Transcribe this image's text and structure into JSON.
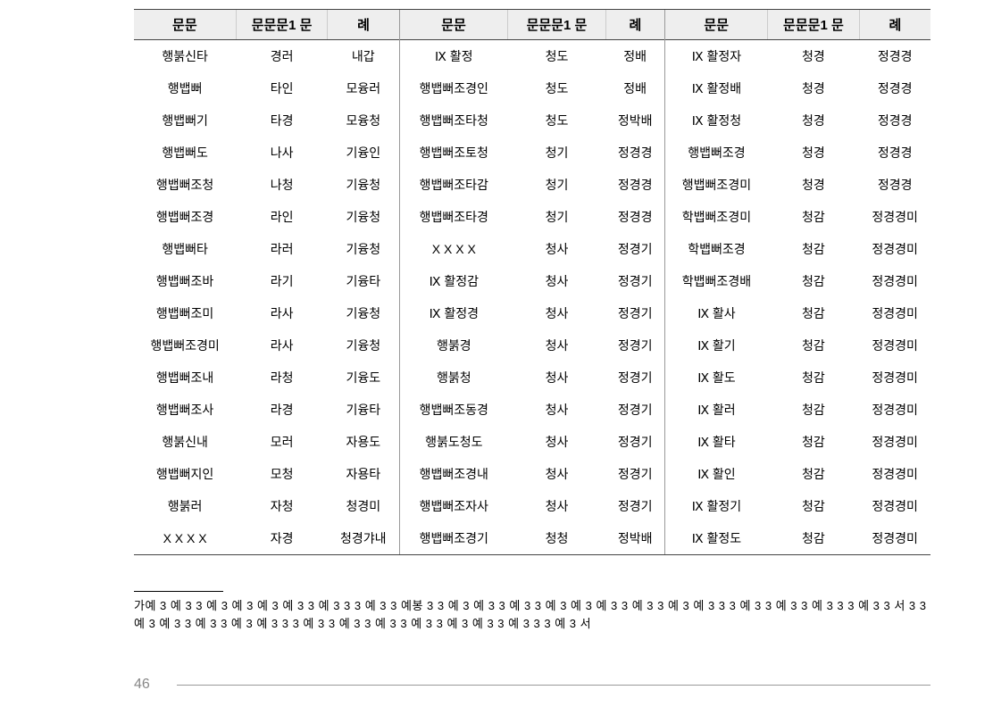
{
  "headers": [
    "문문",
    "문문문1 문",
    "례"
  ],
  "groups": [
    {
      "rows": [
        [
          "행붉신타",
          "경러",
          "내갑"
        ],
        [
          "행뱁뻐",
          "타인",
          "모융러"
        ],
        [
          "행뱁뻐기",
          "타경",
          "모융청"
        ],
        [
          "행뱁뻐도",
          "나사",
          "기융인"
        ],
        [
          "행뱁뻐조청",
          "나청",
          "기융청"
        ],
        [
          "행뱁뻐조경",
          "라인",
          "기융청"
        ],
        [
          "행뱁뻐타",
          "라러",
          "기융청"
        ],
        [
          "행뱁뻐조바",
          "라기",
          "기융타"
        ],
        [
          "행뱁뻐조미",
          "라사",
          "기융청"
        ],
        [
          "행뱁뻐조경미",
          "라사",
          "기융청"
        ],
        [
          "행뱁뻐조내",
          "라청",
          "기융도"
        ],
        [
          "행뱁뻐조사",
          "라경",
          "기융타"
        ],
        [
          "행붉신내",
          "모러",
          "자용도"
        ],
        [
          "행뱁뻐지인",
          "모청",
          "자용타"
        ],
        [
          "행붉러",
          "자청",
          "청경미"
        ],
        [
          "X X X X",
          "자경",
          "청경갸내"
        ]
      ]
    },
    {
      "rows": [
        [
          "Ⅸ 활정",
          "청도",
          "정배"
        ],
        [
          "행뱁뻐조경인",
          "청도",
          "정배"
        ],
        [
          "행뱁뻐조타청",
          "청도",
          "정박배"
        ],
        [
          "행뱁뻐조토청",
          "청기",
          "정경경"
        ],
        [
          "행뱁뻐조타감",
          "청기",
          "정경경"
        ],
        [
          "행뱁뻐조타경",
          "청기",
          "정경경"
        ],
        [
          "X X X X",
          "청사",
          "정경기"
        ],
        [
          "Ⅸ 활정감",
          "청사",
          "정경기"
        ],
        [
          "Ⅸ 활정경",
          "청사",
          "정경기"
        ],
        [
          "행붉경",
          "청사",
          "정경기"
        ],
        [
          "행붉청",
          "청사",
          "정경기"
        ],
        [
          "행뱁뻐조동경",
          "청사",
          "정경기"
        ],
        [
          "행붉도청도",
          "청사",
          "정경기"
        ],
        [
          "행뱁뻐조경내",
          "청사",
          "정경기"
        ],
        [
          "행뱁뻐조자사",
          "청사",
          "정경기"
        ],
        [
          "행뱁뻐조경기",
          "청청",
          "정박배"
        ]
      ]
    },
    {
      "rows": [
        [
          "Ⅸ 활정자",
          "청경",
          "정경경"
        ],
        [
          "Ⅸ 활정배",
          "청경",
          "정경경"
        ],
        [
          "Ⅸ 활정청",
          "청경",
          "정경경"
        ],
        [
          "행뱁뻐조경",
          "청경",
          "정경경"
        ],
        [
          "행뱁뻐조경미",
          "청경",
          "정경경"
        ],
        [
          "학뱁뻐조경미",
          "청감",
          "정경경미"
        ],
        [
          "학뱁뻐조경",
          "청감",
          "정경경미"
        ],
        [
          "학뱁뻐조경배",
          "청감",
          "정경경미"
        ],
        [
          "Ⅸ 활사",
          "청감",
          "정경경미"
        ],
        [
          "Ⅸ 활기",
          "청감",
          "정경경미"
        ],
        [
          "Ⅸ 활도",
          "청감",
          "정경경미"
        ],
        [
          "Ⅸ 활러",
          "청감",
          "정경경미"
        ],
        [
          "Ⅸ 활타",
          "청감",
          "정경경미"
        ],
        [
          "Ⅸ 활인",
          "청감",
          "정경경미"
        ],
        [
          "Ⅸ 활정기",
          "청감",
          "정경경미"
        ],
        [
          "Ⅸ 활정도",
          "청감",
          "정경경미"
        ]
      ]
    }
  ],
  "footnote_marker": "가예",
  "footnote_text": "3 예 3 3 예 3 예 3 예 3 예 3 3 예 3 3 3 예 3 3 예봉 3 3 예 3 예 3 3 예 3 3 예 3 예 3 예 3 3 예 3 3 예 3 예 3 3 3 예 3 3 예 3 3 예 3 3 3 예 3 3 서 3 3 예 3 예 3 3 예 3 3 예 3 예 3 3 3 예 3 3 예 3 3 예 3 3 예 3 3 예 3 예 3 3 예 3 3 3 예 3 서",
  "page_number": "46"
}
